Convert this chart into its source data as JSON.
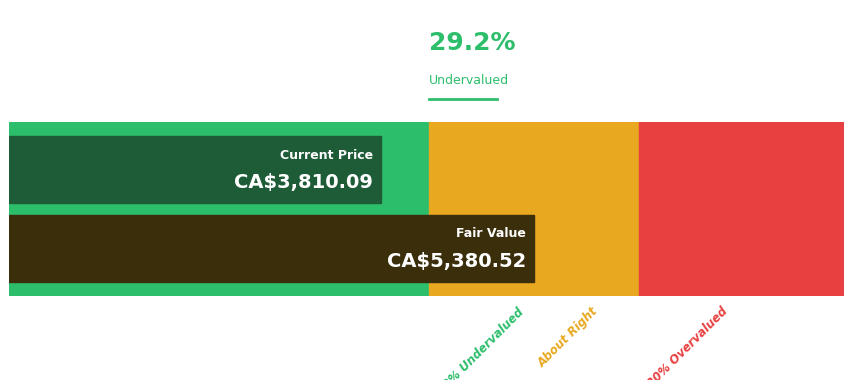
{
  "title_pct": "29.2%",
  "title_label": "Undervalued",
  "current_price_label": "Current Price",
  "current_price_value": "CA$3,810.09",
  "fair_value_label": "Fair Value",
  "fair_value_value": "CA$5,380.52",
  "current_price": 3810.09,
  "fair_value": 5380.52,
  "bg_green": "#2dbe6c",
  "bg_orange": "#e8a820",
  "bg_red": "#e84040",
  "bar_dark_green": "#1e5c38",
  "bar_dark_brown": "#3b2e0a",
  "label_green": "#2dbe6c",
  "label_orange": "#e8a820",
  "label_red": "#e84040",
  "axis_max": 8560,
  "figsize": [
    8.53,
    3.8
  ],
  "dpi": 100
}
